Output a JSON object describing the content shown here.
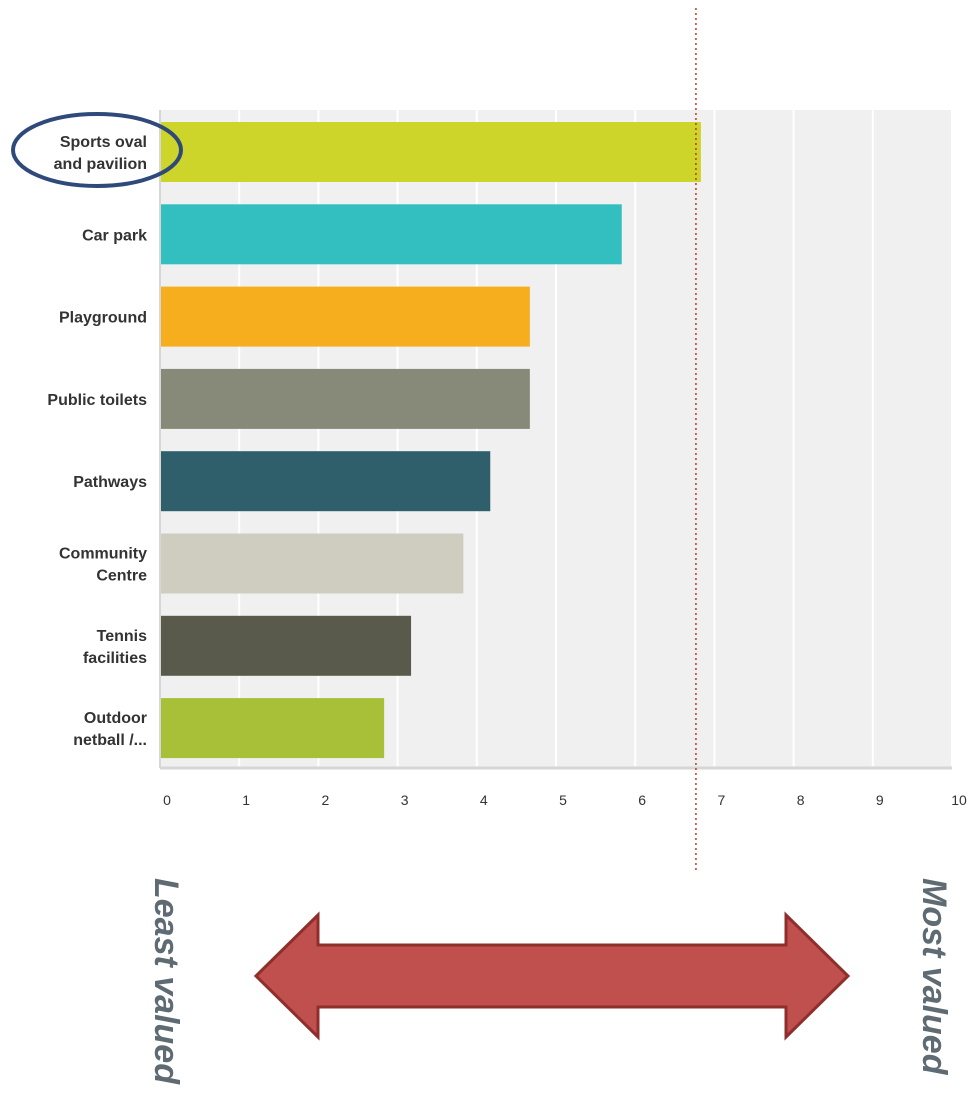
{
  "chart_data": {
    "type": "bar",
    "orientation": "horizontal",
    "categories": [
      [
        "Sports oval",
        "and pavilion"
      ],
      [
        "Car park"
      ],
      [
        "Playground"
      ],
      [
        "Public toilets"
      ],
      [
        "Pathways"
      ],
      [
        "Community",
        "Centre"
      ],
      [
        "Tennis",
        "facilities"
      ],
      [
        "Outdoor",
        "netball /..."
      ]
    ],
    "values": [
      6.83,
      5.83,
      4.67,
      4.67,
      4.17,
      3.83,
      3.17,
      2.83
    ],
    "colors": [
      "#cdd52a",
      "#33bec0",
      "#f6ae1f",
      "#888a79",
      "#2e5f6b",
      "#cfcdbf",
      "#5a5a4c",
      "#a8bf38"
    ],
    "xlim": [
      0,
      10
    ],
    "xticks": [
      "0",
      "1",
      "2",
      "3",
      "4",
      "5",
      "6",
      "7",
      "8",
      "9",
      "10"
    ],
    "grid": true,
    "reference_line": {
      "value": 6.83,
      "style": "dotted",
      "color": "#c0392b"
    },
    "highlighted_category": "Sports oval and pavilion",
    "highlight_color": "#2f4a7a",
    "plot_background": "#f0f0f0"
  },
  "annotations": {
    "left_label": "Least valued",
    "right_label": "Most valued",
    "arrow_color": "#c0504d"
  }
}
